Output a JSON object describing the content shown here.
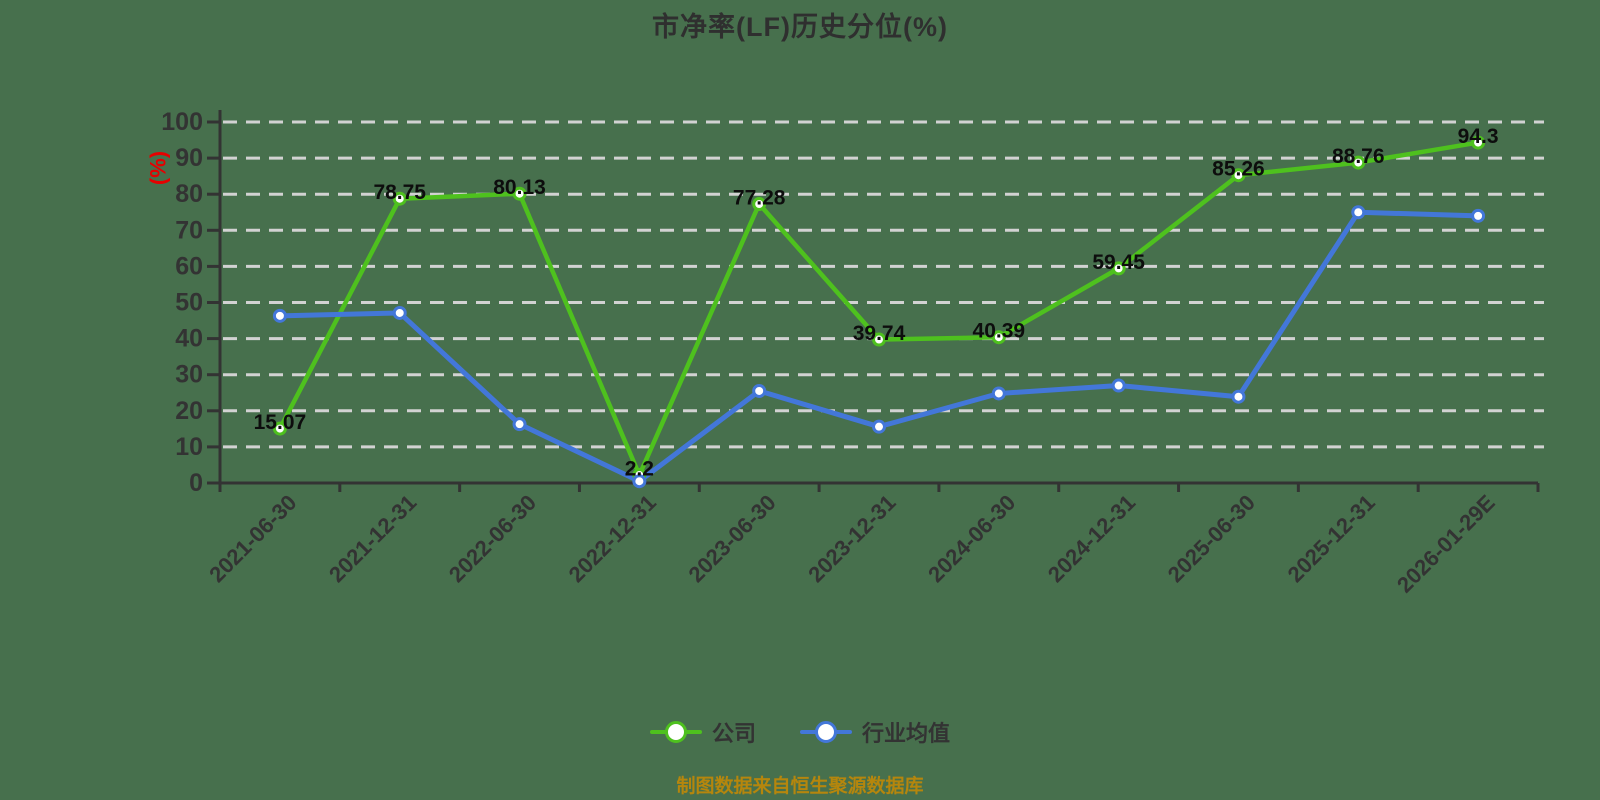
{
  "page": {
    "title": "市净率(LF)历史分位(%)",
    "source_note": "制图数据来自恒生聚源数据库"
  },
  "legend": {
    "items": [
      {
        "label": "公司",
        "color": "#4EC11E"
      },
      {
        "label": "行业均值",
        "color": "#4377D9"
      }
    ]
  },
  "chart_data": {
    "type": "line",
    "title": "市净率(LF)历史分位(%)",
    "ylabel": "(%)",
    "xlabel": "",
    "ylim": [
      0,
      100
    ],
    "y_tick_step": 10,
    "grid": "horizontal dashed gridlines at every 10",
    "legend_position": "bottom",
    "categories": [
      "2021-06-30",
      "2021-12-31",
      "2022-06-30",
      "2022-12-31",
      "2023-06-30",
      "2023-12-31",
      "2024-06-30",
      "2024-12-31",
      "2025-06-30",
      "2025-12-31",
      "2026-01-29E"
    ],
    "series": [
      {
        "name": "公司",
        "color": "#4EC11E",
        "values": [
          15.07,
          78.75,
          80.13,
          2.2,
          77.28,
          39.74,
          40.39,
          59.45,
          85.26,
          88.76,
          94.3
        ],
        "data_labels": true
      },
      {
        "name": "行业均值",
        "color": "#4377D9",
        "values": [
          46.3,
          47.1,
          16.3,
          0.5,
          25.5,
          15.6,
          24.8,
          27,
          23.9,
          75,
          74
        ],
        "data_labels": false,
        "note": "values estimated from gridlines (no labels shown in chart)"
      }
    ],
    "source_note": "制图数据来自恒生聚源数据库"
  },
  "colors": {
    "background": "#47704D",
    "gridline": "#D2D2D2",
    "axis": "#333333",
    "tick_label": "#333333",
    "data_label": "#0D0D0D",
    "company_series": "#4EC11E",
    "industry_series": "#4377D9",
    "y_unit_label": "#E60000",
    "source_note_color": "#B5860D",
    "marker_fill": "#FFFFFF",
    "title_color": "#2F2F2F"
  }
}
